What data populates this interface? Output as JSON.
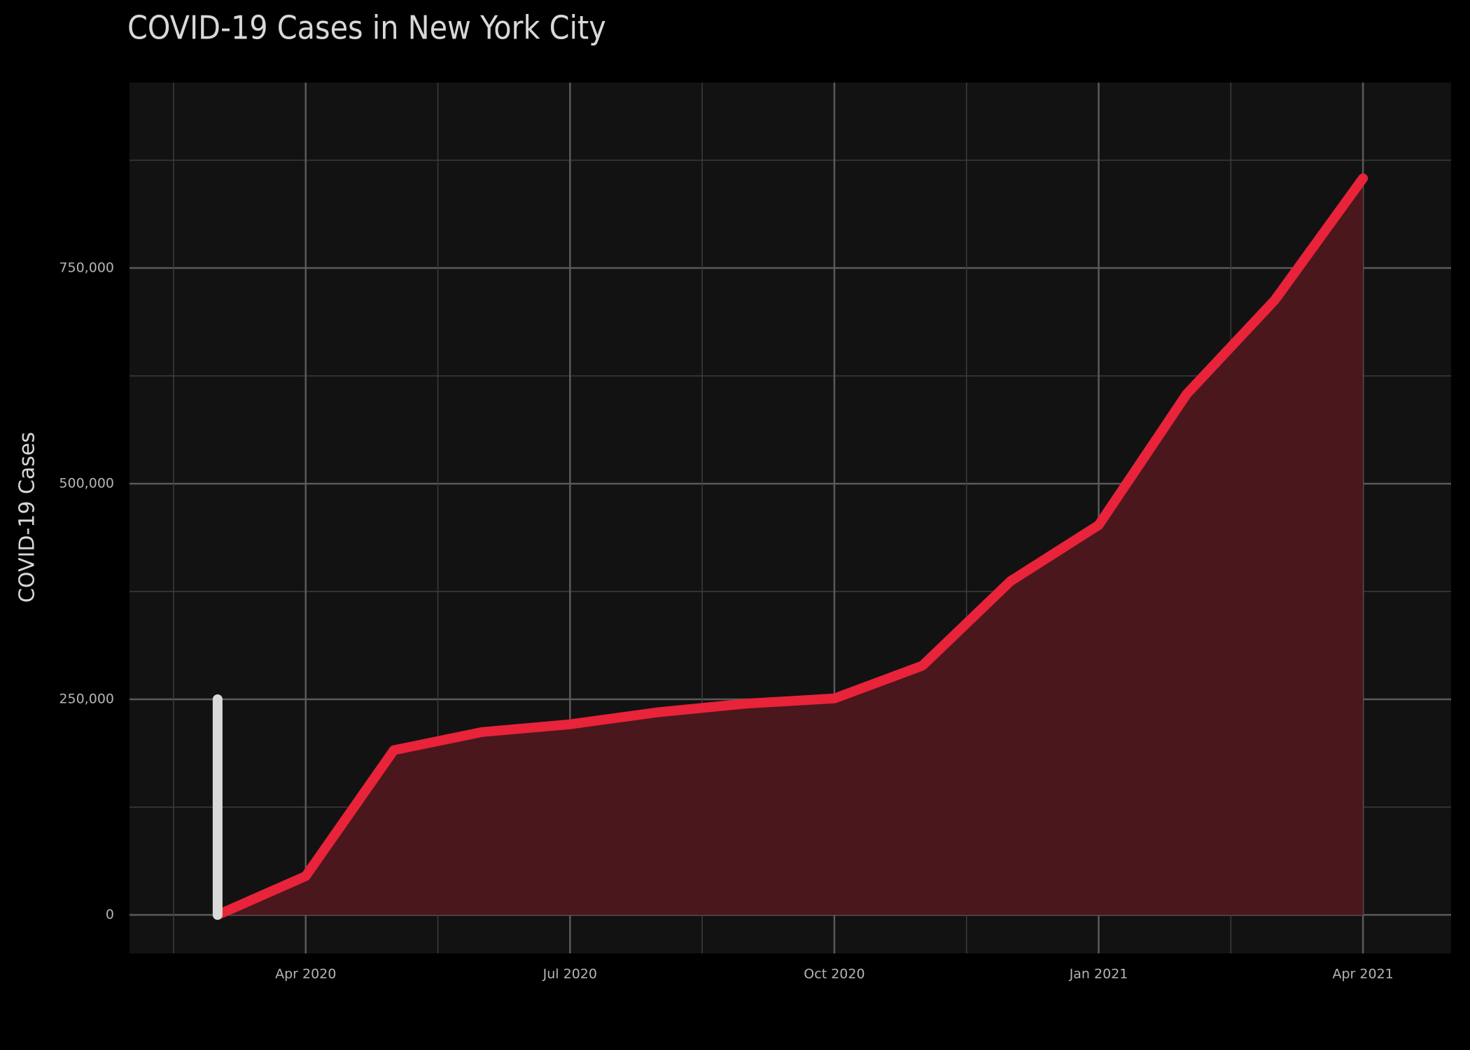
{
  "chart_data": {
    "type": "area",
    "title": "COVID-19 Cases in New York City",
    "y_label": "COVID-19 Cases",
    "x": [
      "2020-03",
      "2020-04",
      "2020-05",
      "2020-06",
      "2020-07",
      "2020-08",
      "2020-09",
      "2020-10",
      "2020-11",
      "2020-12",
      "2021-01",
      "2021-02",
      "2021-03",
      "2021-04"
    ],
    "series": [
      {
        "name": "COVID-19 Cases",
        "color": "#e8233a",
        "fill": "#4a171d",
        "values": [
          0,
          45000,
          191000,
          212000,
          221000,
          235000,
          245000,
          251000,
          289000,
          387000,
          452000,
          604000,
          713000,
          854000
        ]
      }
    ],
    "annotation": {
      "x": "2020-03",
      "from": 0,
      "to": 250000,
      "color": "#d9d9d9"
    },
    "xlim": [
      "2020-02",
      "2021-05"
    ],
    "xticks": [
      {
        "value": "2020-04",
        "label": "Apr 2020"
      },
      {
        "value": "2020-07",
        "label": "Jul 2020"
      },
      {
        "value": "2020-10",
        "label": "Oct 2020"
      },
      {
        "value": "2021-01",
        "label": "Jan 2021"
      },
      {
        "value": "2021-04",
        "label": "Apr 2021"
      }
    ],
    "ylim": [
      -44600,
      965000
    ],
    "yticks": [
      0,
      {
        "value": 250000,
        "label": "250,000"
      },
      {
        "value": 500000,
        "label": "500,000"
      },
      {
        "value": 750000,
        "label": "750,000"
      }
    ],
    "grid": true
  }
}
